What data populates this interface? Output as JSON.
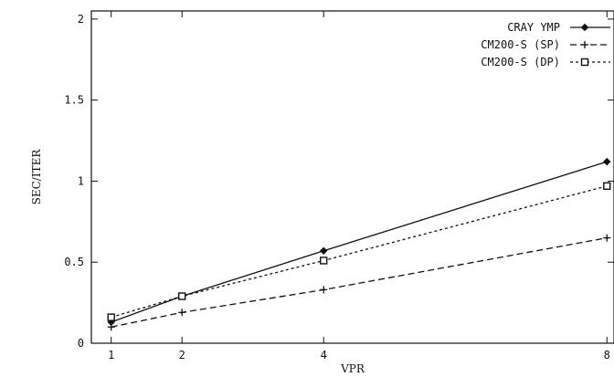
{
  "chart_data": {
    "type": "line",
    "xlabel": "VPR",
    "ylabel": "SEC/ITER",
    "xlim": [
      0.72,
      8.1
    ],
    "ylim": [
      0,
      2.05
    ],
    "xticks": [
      1,
      2,
      4,
      8
    ],
    "yticks": [
      {
        "value": 0,
        "label": "0"
      },
      {
        "value": 0.5,
        "label": "0.5"
      },
      {
        "value": 1,
        "label": "1"
      },
      {
        "value": 1.5,
        "label": "1.5"
      },
      {
        "value": 2,
        "label": "2"
      }
    ],
    "grid": false,
    "legend": "top-right",
    "series": [
      {
        "name": "CRAY YMP",
        "style": "solid",
        "marker": "diamond",
        "x": [
          1,
          2,
          4,
          8
        ],
        "values": [
          0.13,
          0.29,
          0.57,
          1.12
        ]
      },
      {
        "name": "CM200-S (SP)",
        "style": "dashed",
        "marker": "plus",
        "x": [
          1,
          2,
          4,
          8
        ],
        "values": [
          0.1,
          0.19,
          0.33,
          0.65
        ]
      },
      {
        "name": "CM200-S (DP)",
        "style": "dotted",
        "marker": "square",
        "x": [
          1,
          2,
          4,
          8
        ],
        "values": [
          0.16,
          0.29,
          0.51,
          0.97
        ]
      }
    ]
  }
}
